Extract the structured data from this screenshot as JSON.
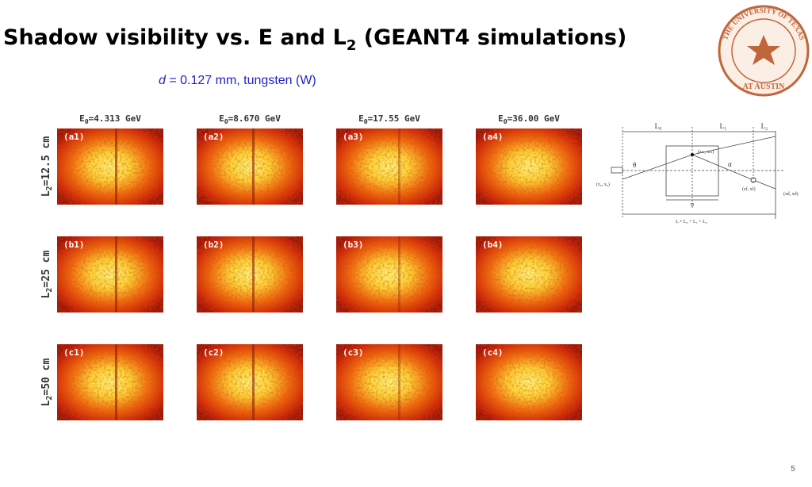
{
  "header": {
    "title": {
      "text": "Shadow visibility vs. E and L",
      "sub": "2",
      "rest": " (GEANT4 simulations)"
    },
    "subtitle": {
      "var": "d",
      "text": " = 0.127 mm, tungsten (W)"
    }
  },
  "logo": {
    "top": "THE UNIVERSITY OF TEXAS",
    "bottom": "AT AUSTIN"
  },
  "columns": [
    {
      "symbol": "E",
      "sub": "0",
      "value": "=4.313 GeV"
    },
    {
      "symbol": "E",
      "sub": "0",
      "value": "=8.670 GeV"
    },
    {
      "symbol": "E",
      "sub": "0",
      "value": "=17.55 GeV"
    },
    {
      "symbol": "E",
      "sub": "0",
      "value": "=36.00 GeV"
    }
  ],
  "rows": [
    {
      "label": {
        "symbol": "L",
        "sub": "2",
        "value": "=12.5 cm"
      },
      "panels": [
        "(a1)",
        "(a2)",
        "(a3)",
        "(a4)"
      ]
    },
    {
      "label": {
        "symbol": "L",
        "sub": "2",
        "value": "=25 cm"
      },
      "panels": [
        "(b1)",
        "(b2)",
        "(b3)",
        "(b4)"
      ]
    },
    {
      "label": {
        "symbol": "L",
        "sub": "2",
        "value": "=50 cm"
      },
      "panels": [
        "(c1)",
        "(c2)",
        "(c3)",
        "(c4)"
      ]
    }
  ],
  "diagram": {
    "l0": "L₀",
    "l1": "L₁",
    "l2": "L₂",
    "theta": "θ",
    "alpha": "α",
    "source": "(z₀, x₀)",
    "mid": "(zₘ, xₘ)",
    "exit": "(zf, xf)",
    "detector": "(zd, xd)",
    "d": "D",
    "total": "L = L₀ + L₁ + L₂"
  },
  "page_number": "5"
}
